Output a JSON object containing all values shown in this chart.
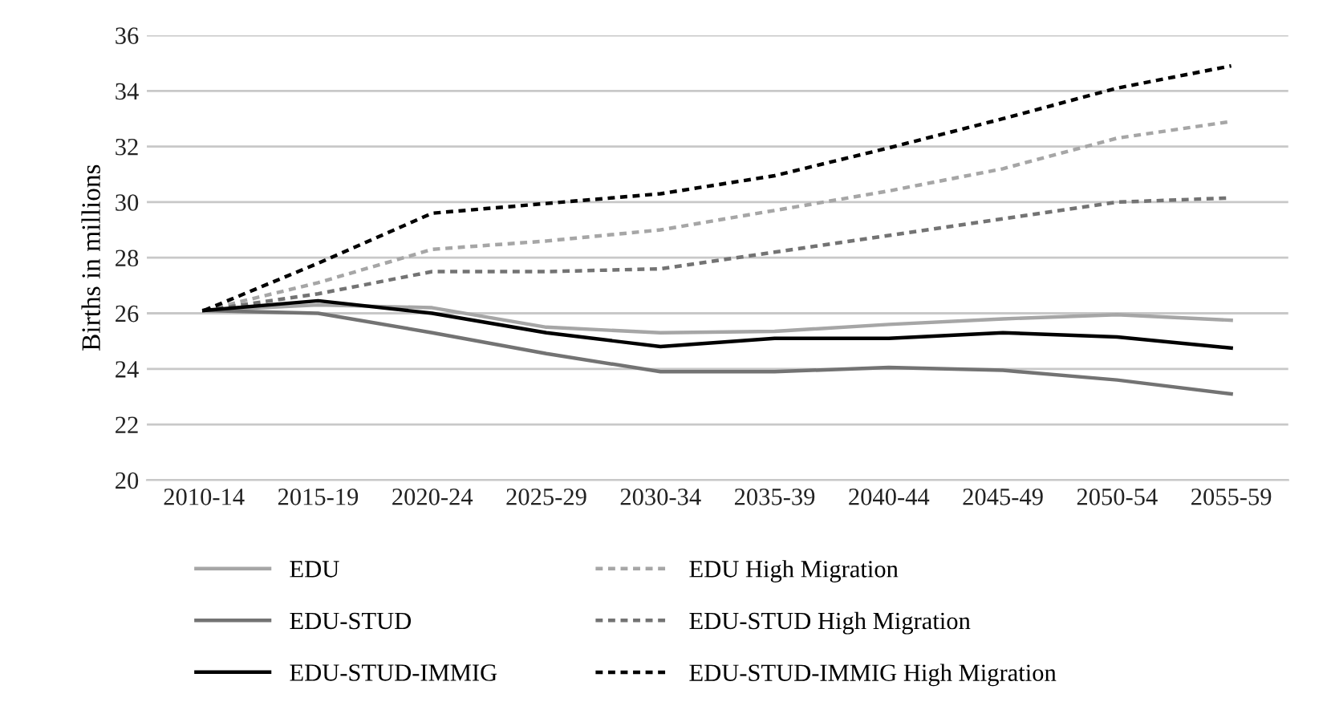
{
  "chart_data": {
    "type": "line",
    "ylabel": "Births in millions",
    "categories": [
      "2010-14",
      "2015-19",
      "2020-24",
      "2025-29",
      "2030-34",
      "2035-39",
      "2040-44",
      "2045-49",
      "2050-54",
      "2055-59"
    ],
    "ylim": [
      20,
      36
    ],
    "yticks": [
      20,
      22,
      24,
      26,
      28,
      30,
      32,
      34,
      36
    ],
    "grid": "y",
    "legend": "bottom",
    "marker": "none",
    "series": [
      {
        "name": "EDU",
        "color": "#a6a6a6",
        "line_style": "solid",
        "values": [
          26.1,
          26.3,
          26.2,
          25.5,
          25.3,
          25.35,
          25.6,
          25.8,
          25.95,
          25.75
        ]
      },
      {
        "name": "EDU High Migration",
        "color": "#a6a6a6",
        "line_style": "dashed",
        "values": [
          26.1,
          27.1,
          28.3,
          28.6,
          29.0,
          29.7,
          30.4,
          31.2,
          32.3,
          32.9
        ]
      },
      {
        "name": "EDU-STUD",
        "color": "#737373",
        "line_style": "solid",
        "values": [
          26.1,
          26.0,
          25.3,
          24.55,
          23.9,
          23.9,
          24.05,
          23.95,
          23.6,
          23.1
        ]
      },
      {
        "name": "EDU-STUD High Migration",
        "color": "#737373",
        "line_style": "dashed",
        "values": [
          26.1,
          26.7,
          27.5,
          27.5,
          27.6,
          28.2,
          28.8,
          29.4,
          30.0,
          30.15
        ]
      },
      {
        "name": "EDU-STUD-IMMIG",
        "color": "#000000",
        "line_style": "solid",
        "values": [
          26.1,
          26.45,
          26.0,
          25.3,
          24.8,
          25.1,
          25.1,
          25.3,
          25.15,
          24.75
        ]
      },
      {
        "name": "EDU-STUD-IMMIG High Migration",
        "color": "#000000",
        "line_style": "dashed",
        "values": [
          26.1,
          27.8,
          29.6,
          29.95,
          30.3,
          30.95,
          31.95,
          33.0,
          34.1,
          34.9
        ]
      }
    ]
  }
}
